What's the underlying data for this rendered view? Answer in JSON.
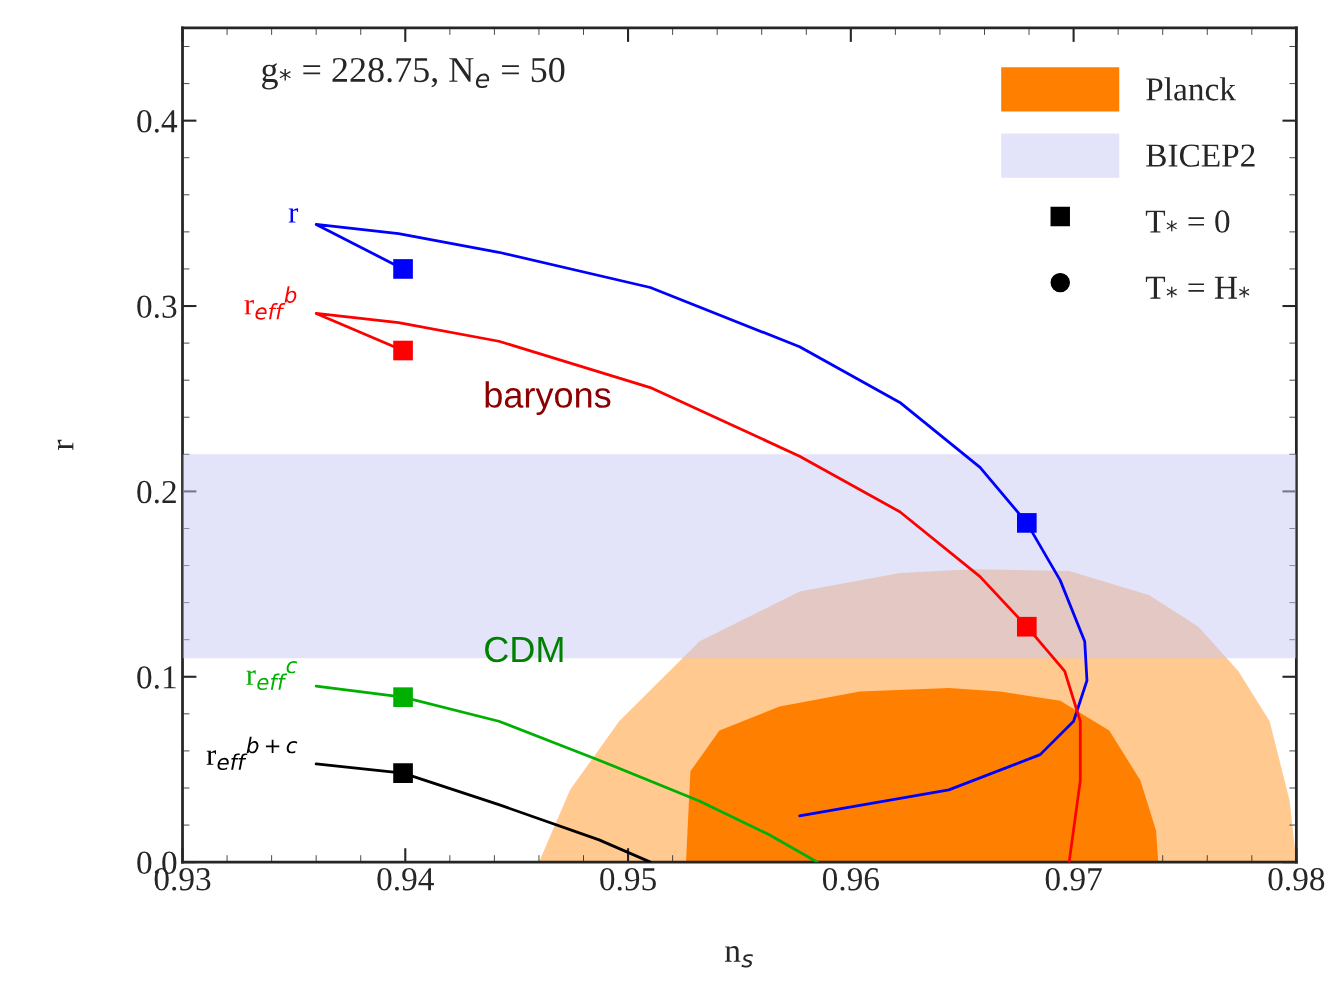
{
  "chart_data": {
    "type": "line",
    "title": "g$_{*}$ = 228.75, N$_{e}$ = 50",
    "xlabel": "n$_{s}$",
    "ylabel": "r",
    "xlim": [
      0.93,
      0.98
    ],
    "xticks": [
      0.93,
      0.94,
      0.95,
      0.96,
      0.97,
      0.98
    ],
    "ylim": [
      0,
      0.45
    ],
    "yticks": [
      {
        "value": 0,
        "label": "0.0"
      },
      0.1,
      0.2,
      0.3,
      0.4
    ],
    "grid": false,
    "legend": "top right",
    "line_style": "solid",
    "series": [
      {
        "type": "area",
        "color": "#ffc990",
        "x": [
          0.946,
          0.9474,
          0.9496,
          0.9532,
          0.9577,
          0.9622,
          0.9655,
          0.9698,
          0.9734,
          0.9756,
          0.9774,
          0.9788,
          0.9797,
          0.98
        ],
        "values": [
          0,
          0.039,
          0.076,
          0.119,
          0.146,
          0.156,
          0.158,
          0.157,
          0.144,
          0.127,
          0.103,
          0.076,
          0.033,
          0
        ]
      },
      {
        "type": "area",
        "name": "Planck",
        "color": "#ff8000",
        "x": [
          0.9526,
          0.9528,
          0.9541,
          0.9568,
          0.9604,
          0.9644,
          0.9667,
          0.9694,
          0.9716,
          0.973,
          0.9737,
          0.9738
        ],
        "values": [
          0,
          0.049,
          0.071,
          0.084,
          0.092,
          0.094,
          0.092,
          0.087,
          0.071,
          0.044,
          0.017,
          0
        ]
      },
      {
        "name": "r",
        "color": "#0000ff",
        "x": [
          0.9577,
          0.9644,
          0.9685,
          0.97,
          0.9706,
          0.9705,
          0.9694,
          0.9679,
          0.9658,
          0.9622,
          0.9577,
          0.951,
          0.9442,
          0.9397,
          0.936,
          0.9399
        ],
        "values": [
          0.025,
          0.039,
          0.058,
          0.076,
          0.098,
          0.119,
          0.152,
          0.183,
          0.213,
          0.248,
          0.278,
          0.31,
          0.329,
          0.339,
          0.344,
          0.32
        ]
      },
      {
        "name": "r$_{eff}$$^{b}$",
        "color": "#ff0000",
        "x": [
          0.9698,
          0.9703,
          0.9703,
          0.9696,
          0.9679,
          0.9658,
          0.9622,
          0.9577,
          0.951,
          0.9442,
          0.9397,
          0.936,
          0.9399
        ],
        "values": [
          0,
          0.044,
          0.076,
          0.103,
          0.127,
          0.154,
          0.189,
          0.219,
          0.256,
          0.281,
          0.291,
          0.296,
          0.276
        ]
      },
      {
        "name": "r$_{eff}$$^{c}$",
        "color": "#00b000",
        "x": [
          0.936,
          0.9399,
          0.9442,
          0.9487,
          0.9532,
          0.9563,
          0.9585
        ],
        "values": [
          0.095,
          0.089,
          0.076,
          0.055,
          0.033,
          0.015,
          0
        ]
      },
      {
        "name": "r$_{eff}$$^{b+c}$",
        "color": "#000000",
        "x": [
          0.936,
          0.9399,
          0.9442,
          0.9487,
          0.951
        ],
        "values": [
          0.053,
          0.048,
          0.031,
          0.012,
          0
        ]
      },
      {
        "type": "scatter",
        "name": "T$_{*}$ = 0",
        "marker": "square",
        "color": "#000000",
        "colors": [
          "#0000ff",
          "#0000ff",
          "#ff0000",
          "#ff0000",
          "#00b000",
          "#000000"
        ],
        "x": [
          0.9399,
          0.9679,
          0.9399,
          0.9679,
          0.9399,
          0.9399
        ],
        "values": [
          0.32,
          0.183,
          0.276,
          0.127,
          0.089,
          0.048
        ]
      },
      {
        "type": "scatter",
        "name": "T$_{*}$ = H$_{*}$",
        "marker": "circle",
        "color": "#000000"
      }
    ],
    "bands": [
      {
        "axis": "y",
        "from": 0.11,
        "to": 0.22,
        "label": "BICEP2",
        "color": "#c8c8f5"
      }
    ],
    "annotations": [
      "baryons",
      "CDM"
    ]
  }
}
